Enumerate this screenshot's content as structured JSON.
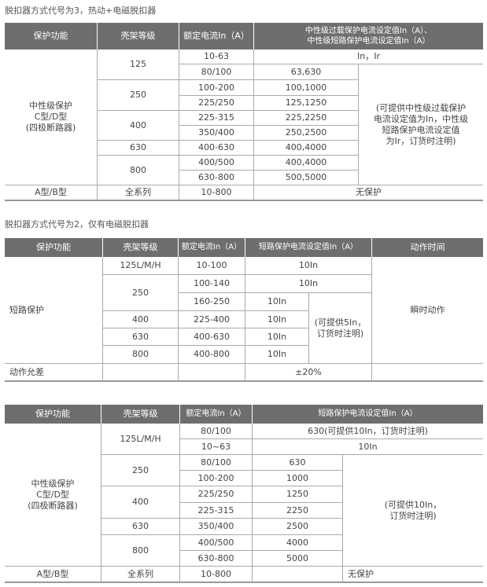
{
  "t1": {
    "title": "脱扣器方式代号为3，热动+电磁脱扣器",
    "headers": [
      "保护功能",
      "壳架等级",
      "额定电流In（A）",
      "中性级过载保护电流设定值In（A）、\n中性级短路保护电流设定值In（A）"
    ],
    "func": "中性级保护\nC型/D型\n(四极断路器)",
    "frames": [
      "125",
      "250",
      "400",
      "630",
      "800"
    ],
    "rated": [
      "10-63",
      "80/100",
      "100-200",
      "225/250",
      "225-315",
      "350/400",
      "400-630",
      "400/500",
      "630-800"
    ],
    "settings": [
      "In，Ir",
      "63,630",
      "100,1000",
      "125,1250",
      "225,2250",
      "250,2500",
      "400,4000",
      "400,4000",
      "500,5000"
    ],
    "note": "(可提供中性级过载保护\n电流设定值为In，中性级\n短路保护电流设定值\n为Ir，订货时注明)",
    "last": [
      "A型/B型",
      "全系列",
      "10-800",
      "无保护"
    ]
  },
  "t2": {
    "title": "脱扣器方式代号为2，仅有电磁脱扣器",
    "headers": [
      "保护功能",
      "壳架等级",
      "额定电流In（A）",
      "短路保护电流设定值In（A）",
      "动作时间"
    ],
    "func": "短路保护",
    "frames": [
      "125L/M/H",
      "250",
      "400",
      "630",
      "800"
    ],
    "rated": [
      "10-100",
      "100-140",
      "160-250",
      "225-400",
      "400-630",
      "400-800"
    ],
    "settings": [
      "10In",
      "10In",
      "10In",
      "10In",
      "10In",
      "10In"
    ],
    "note": "(可提供5In，\n订货时注明)",
    "time": "瞬时动作",
    "tolerance_label": "动作允差",
    "tolerance": "±20%"
  },
  "t3": {
    "headers": [
      "保护功能",
      "壳架等级",
      "额定电流In（A）",
      "短路保护电流设定值In（A）"
    ],
    "func": "中性级保护\nC型/D型\n(四极断路器)",
    "frames": [
      "125L/M/H",
      "250",
      "400",
      "630",
      "800"
    ],
    "rated": [
      "80/100",
      "10~63",
      "80/100",
      "100-200",
      "225/250",
      "225-315",
      "350/400",
      "400/500",
      "630-800"
    ],
    "settings": [
      "630(可提供10In，订货时注明)",
      "10In",
      "630",
      "1000",
      "1250",
      "2250",
      "2500",
      "4000",
      "5000"
    ],
    "note": "(可提供10In，\n订货时注明)",
    "last": [
      "A型/B型",
      "全系列",
      "10-800",
      "无保护"
    ]
  }
}
